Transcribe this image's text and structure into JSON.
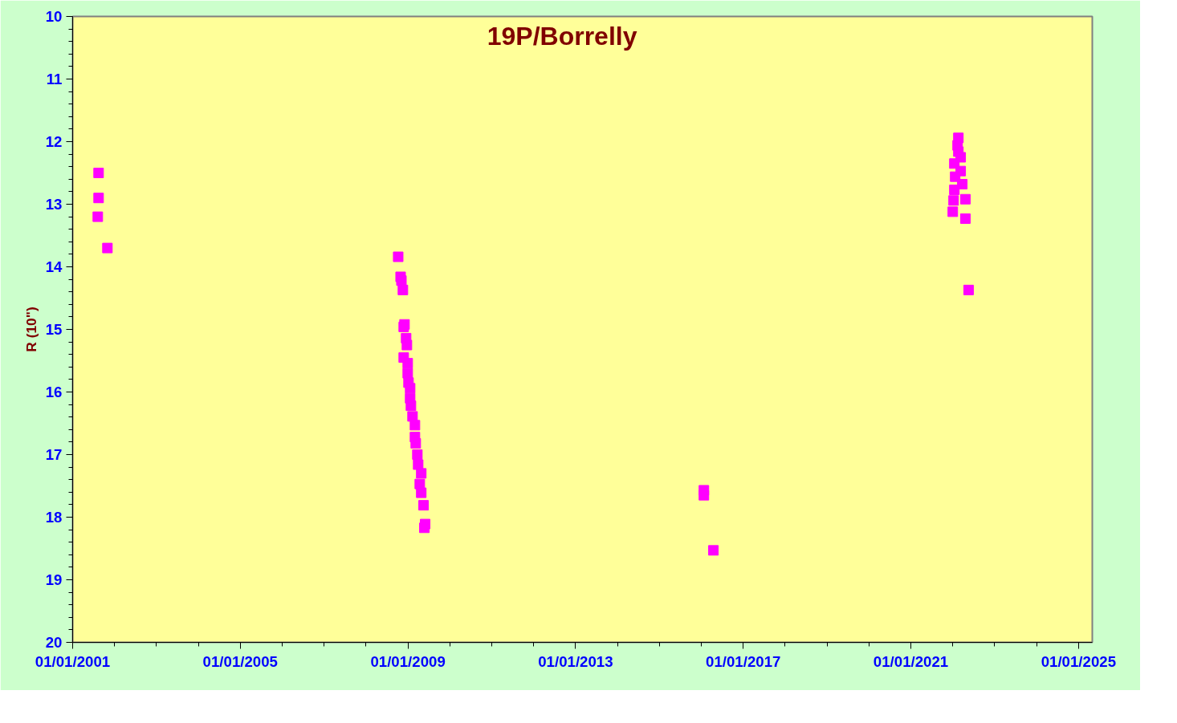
{
  "chart_data": {
    "type": "scatter",
    "title": "19P/Borrelly",
    "ylabel": "R (10\")",
    "marker": "square",
    "grid": false,
    "xlim": [
      "2001-01-01",
      "2025-05-01"
    ],
    "xticks": [
      {
        "value": "2001-01-01",
        "label": "01/01/2001"
      },
      {
        "value": "2005-01-01",
        "label": "01/01/2005"
      },
      {
        "value": "2009-01-01",
        "label": "01/01/2009"
      },
      {
        "value": "2013-01-01",
        "label": "01/01/2013"
      },
      {
        "value": "2017-01-01",
        "label": "01/01/2017"
      },
      {
        "value": "2021-01-01",
        "label": "01/01/2021"
      },
      {
        "value": "2025-01-01",
        "label": "01/01/2025"
      }
    ],
    "ylim": [
      20,
      10
    ],
    "yticks": [
      10,
      11,
      12,
      13,
      14,
      15,
      16,
      17,
      18,
      19,
      20
    ],
    "series": [
      {
        "color": "#ff00ff",
        "x": [
          "2001-08-15",
          "2001-08-15",
          "2001-08-08",
          "2001-10-31",
          "2008-10-08",
          "2008-10-29",
          "2008-11-05",
          "2008-11-18",
          "2008-12-02",
          "2008-11-25",
          "2008-12-16",
          "2008-12-23",
          "2008-11-25",
          "2008-12-30",
          "2008-12-30",
          "2009-01-06",
          "2009-01-20",
          "2009-01-20",
          "2009-01-27",
          "2009-02-10",
          "2009-03-03",
          "2009-03-03",
          "2009-03-10",
          "2009-03-24",
          "2009-03-31",
          "2009-04-27",
          "2009-04-14",
          "2009-04-27",
          "2009-05-17",
          "2009-05-31",
          "2009-05-24",
          "2016-01-24",
          "2016-01-24",
          "2016-04-16",
          "2022-02-19",
          "2022-02-12",
          "2022-02-19",
          "2022-03-11",
          "2022-01-15",
          "2022-03-11",
          "2022-01-22",
          "2022-03-25",
          "2022-01-15",
          "2022-01-08",
          "2022-04-21",
          "2022-01-01",
          "2022-04-21",
          "2022-05-19"
        ],
        "values": [
          12.5,
          12.9,
          13.2,
          13.7,
          13.84,
          14.16,
          14.22,
          14.37,
          14.92,
          14.96,
          15.14,
          15.25,
          15.45,
          15.54,
          15.7,
          15.85,
          15.94,
          16.1,
          16.22,
          16.39,
          16.53,
          16.72,
          16.82,
          17.0,
          17.16,
          17.3,
          17.47,
          17.61,
          17.81,
          18.11,
          18.17,
          17.57,
          17.65,
          18.53,
          11.94,
          12.06,
          12.16,
          12.25,
          12.35,
          12.47,
          12.56,
          12.68,
          12.77,
          12.94,
          12.92,
          13.12,
          13.23,
          14.37
        ]
      }
    ]
  }
}
